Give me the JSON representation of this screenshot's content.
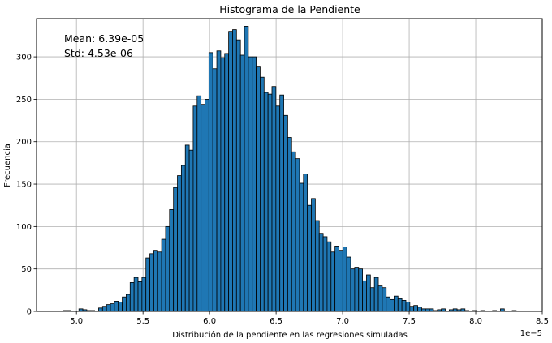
{
  "chart_data": {
    "type": "bar",
    "title": "Histograma de la Pendiente",
    "xlabel": "Distribución de la pendiente en las regresiones simuladas",
    "ylabel": "Frecuencia",
    "x_offset_label": "1e−5",
    "xlim": [
      4.7,
      8.5
    ],
    "ylim": [
      0,
      345
    ],
    "x_ticks": [
      5.0,
      5.5,
      6.0,
      6.5,
      7.0,
      7.5,
      8.0,
      8.5
    ],
    "x_tick_labels": [
      "5.0",
      "5.5",
      "6.0",
      "6.5",
      "7.0",
      "7.5",
      "8.0",
      "8.5"
    ],
    "y_ticks": [
      0,
      50,
      100,
      150,
      200,
      250,
      300
    ],
    "y_tick_labels": [
      "0",
      "50",
      "100",
      "150",
      "200",
      "250",
      "300"
    ],
    "grid": true,
    "bar_color": "#1f77b4",
    "edge_color": "#000000",
    "bin_start": 4.9,
    "bin_width": 0.0296,
    "values": [
      1,
      1,
      0,
      0,
      3,
      2,
      1,
      1,
      0,
      4,
      6,
      8,
      9,
      12,
      11,
      17,
      20,
      34,
      40,
      35,
      40,
      63,
      68,
      72,
      70,
      85,
      100,
      120,
      146,
      160,
      172,
      196,
      190,
      242,
      254,
      244,
      250,
      305,
      286,
      307,
      299,
      304,
      330,
      332,
      320,
      302,
      336,
      300,
      300,
      288,
      276,
      258,
      256,
      265,
      242,
      255,
      231,
      205,
      188,
      180,
      151,
      162,
      125,
      133,
      107,
      92,
      88,
      82,
      70,
      77,
      72,
      76,
      64,
      50,
      52,
      50,
      36,
      43,
      28,
      40,
      30,
      28,
      17,
      14,
      18,
      15,
      13,
      11,
      6,
      7,
      5,
      3,
      3,
      3,
      1,
      2,
      3,
      0,
      2,
      3,
      2,
      3,
      1,
      0,
      1,
      0,
      1,
      0,
      0,
      1,
      0,
      3,
      0,
      0,
      1
    ]
  },
  "annotations": {
    "mean": "Mean: 6.39e-05",
    "std": "Std: 4.53e-06"
  }
}
